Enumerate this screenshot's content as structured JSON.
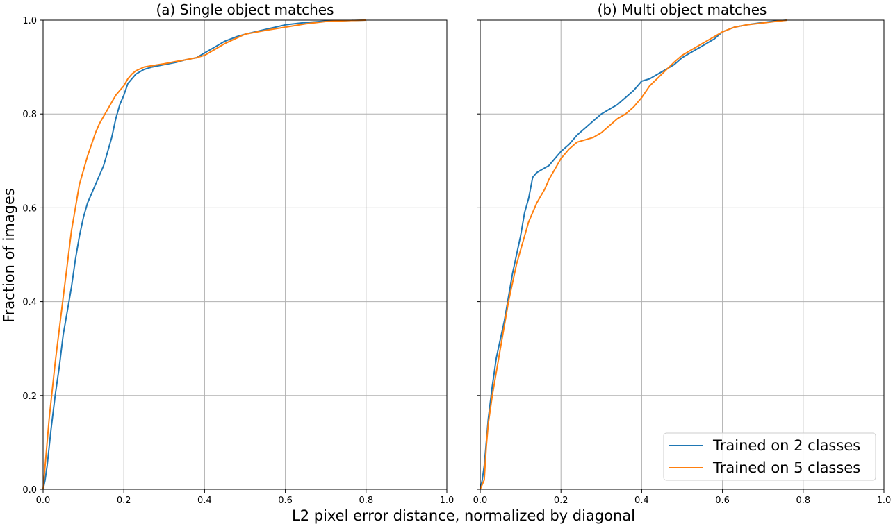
{
  "figure": {
    "xlabel": "L2 pixel error distance, normalized by diagonal",
    "ylabel": "Fraction of images"
  },
  "legend": {
    "items": [
      {
        "label": "Trained on 2 classes",
        "color": "#1f77b4"
      },
      {
        "label": "Trained on 5 classes",
        "color": "#ff7f0e"
      }
    ],
    "placement": "lower-right of panel (b)"
  },
  "chart_data": [
    {
      "type": "line",
      "title": "(a) Single object matches",
      "xlim": [
        0,
        1
      ],
      "ylim": [
        0,
        1
      ],
      "xticks": [
        "0.0",
        "0.2",
        "0.4",
        "0.6",
        "0.8",
        "1.0"
      ],
      "yticks": [
        "0.0",
        "0.2",
        "0.4",
        "0.6",
        "0.8",
        "1.0"
      ],
      "grid": true,
      "series": [
        {
          "name": "Trained on 2 classes",
          "color": "#1f77b4",
          "x": [
            0,
            0.005,
            0.01,
            0.015,
            0.02,
            0.03,
            0.04,
            0.05,
            0.06,
            0.07,
            0.08,
            0.09,
            0.1,
            0.11,
            0.12,
            0.13,
            0.14,
            0.15,
            0.16,
            0.17,
            0.18,
            0.19,
            0.2,
            0.21,
            0.22,
            0.23,
            0.25,
            0.27,
            0.3,
            0.33,
            0.35,
            0.38,
            0.4,
            0.43,
            0.45,
            0.48,
            0.5,
            0.55,
            0.6,
            0.65,
            0.7,
            0.75,
            0.8
          ],
          "y": [
            0,
            0.02,
            0.05,
            0.09,
            0.13,
            0.2,
            0.26,
            0.33,
            0.38,
            0.43,
            0.49,
            0.54,
            0.58,
            0.61,
            0.63,
            0.65,
            0.67,
            0.69,
            0.72,
            0.75,
            0.79,
            0.82,
            0.84,
            0.865,
            0.875,
            0.885,
            0.895,
            0.9,
            0.905,
            0.91,
            0.915,
            0.92,
            0.93,
            0.945,
            0.955,
            0.965,
            0.97,
            0.98,
            0.99,
            0.995,
            0.998,
            0.999,
            1.0
          ]
        },
        {
          "name": "Trained on 5 classes",
          "color": "#ff7f0e",
          "x": [
            0,
            0.005,
            0.01,
            0.015,
            0.02,
            0.03,
            0.04,
            0.05,
            0.06,
            0.07,
            0.08,
            0.09,
            0.1,
            0.11,
            0.12,
            0.13,
            0.14,
            0.15,
            0.16,
            0.17,
            0.18,
            0.19,
            0.2,
            0.21,
            0.22,
            0.23,
            0.25,
            0.27,
            0.3,
            0.33,
            0.35,
            0.38,
            0.4,
            0.43,
            0.45,
            0.48,
            0.5,
            0.55,
            0.6,
            0.65,
            0.7,
            0.75,
            0.8
          ],
          "y": [
            0,
            0.05,
            0.1,
            0.15,
            0.19,
            0.27,
            0.34,
            0.41,
            0.48,
            0.55,
            0.6,
            0.65,
            0.68,
            0.71,
            0.735,
            0.76,
            0.78,
            0.795,
            0.81,
            0.825,
            0.84,
            0.85,
            0.86,
            0.875,
            0.885,
            0.892,
            0.9,
            0.903,
            0.907,
            0.912,
            0.915,
            0.92,
            0.925,
            0.94,
            0.95,
            0.962,
            0.97,
            0.978,
            0.985,
            0.992,
            0.997,
            0.999,
            1.0
          ]
        }
      ]
    },
    {
      "type": "line",
      "title": "(b) Multi object matches",
      "xlim": [
        0,
        1
      ],
      "ylim": [
        0,
        1
      ],
      "xticks": [
        "0.0",
        "0.2",
        "0.4",
        "0.6",
        "0.8",
        "1.0"
      ],
      "yticks": [
        "0.0",
        "0.2",
        "0.4",
        "0.6",
        "0.8",
        "1.0"
      ],
      "grid": true,
      "series": [
        {
          "name": "Trained on 2 classes",
          "color": "#1f77b4",
          "x": [
            0,
            0.005,
            0.01,
            0.015,
            0.02,
            0.03,
            0.04,
            0.05,
            0.06,
            0.07,
            0.08,
            0.09,
            0.1,
            0.11,
            0.12,
            0.13,
            0.14,
            0.15,
            0.16,
            0.17,
            0.18,
            0.19,
            0.2,
            0.22,
            0.24,
            0.26,
            0.28,
            0.3,
            0.32,
            0.34,
            0.36,
            0.38,
            0.4,
            0.42,
            0.45,
            0.48,
            0.5,
            0.52,
            0.55,
            0.58,
            0.6,
            0.63,
            0.66,
            0.7,
            0.73,
            0.76
          ],
          "y": [
            0,
            0.02,
            0.05,
            0.1,
            0.15,
            0.22,
            0.28,
            0.32,
            0.36,
            0.41,
            0.46,
            0.5,
            0.54,
            0.59,
            0.62,
            0.665,
            0.675,
            0.68,
            0.685,
            0.69,
            0.7,
            0.71,
            0.72,
            0.735,
            0.755,
            0.77,
            0.785,
            0.8,
            0.81,
            0.82,
            0.835,
            0.85,
            0.87,
            0.875,
            0.89,
            0.905,
            0.92,
            0.93,
            0.945,
            0.96,
            0.975,
            0.985,
            0.99,
            0.995,
            0.998,
            1.0
          ]
        },
        {
          "name": "Trained on 5 classes",
          "color": "#ff7f0e",
          "x": [
            0,
            0.005,
            0.01,
            0.015,
            0.02,
            0.03,
            0.04,
            0.05,
            0.06,
            0.07,
            0.08,
            0.09,
            0.1,
            0.11,
            0.12,
            0.13,
            0.14,
            0.15,
            0.16,
            0.17,
            0.18,
            0.19,
            0.2,
            0.22,
            0.24,
            0.26,
            0.28,
            0.3,
            0.32,
            0.34,
            0.36,
            0.38,
            0.4,
            0.42,
            0.45,
            0.48,
            0.5,
            0.52,
            0.55,
            0.58,
            0.6,
            0.63,
            0.66,
            0.7,
            0.73,
            0.76
          ],
          "y": [
            0,
            0.01,
            0.02,
            0.09,
            0.14,
            0.2,
            0.25,
            0.3,
            0.35,
            0.4,
            0.44,
            0.48,
            0.51,
            0.54,
            0.57,
            0.59,
            0.61,
            0.625,
            0.64,
            0.66,
            0.675,
            0.69,
            0.705,
            0.725,
            0.74,
            0.745,
            0.75,
            0.76,
            0.775,
            0.79,
            0.8,
            0.815,
            0.835,
            0.86,
            0.885,
            0.91,
            0.925,
            0.935,
            0.95,
            0.965,
            0.975,
            0.985,
            0.99,
            0.994,
            0.997,
            1.0
          ]
        }
      ]
    }
  ]
}
